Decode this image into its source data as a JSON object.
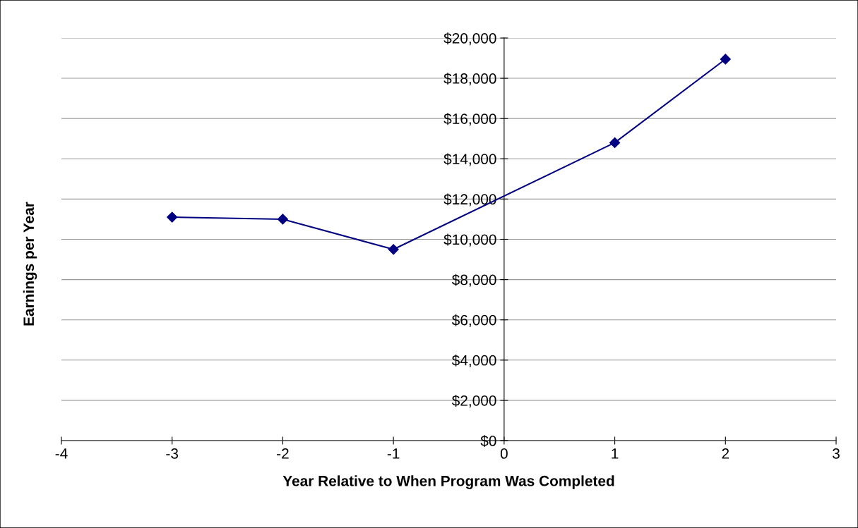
{
  "chart_data": {
    "type": "line",
    "xlabel": "Year Relative to When Program Was Completed",
    "ylabel": "Earnings per Year",
    "x": [
      -3,
      -2,
      -1,
      1,
      2
    ],
    "series": [
      {
        "color": "#000080",
        "values": [
          11100,
          11000,
          9500,
          14800,
          18950
        ]
      }
    ],
    "xlim": [
      -4,
      3
    ],
    "xticks": [
      -4,
      -3,
      -2,
      -1,
      0,
      1,
      2,
      3
    ],
    "ylim": [
      0,
      20000
    ],
    "yticks": [
      {
        "value": 0,
        "label": "$0"
      },
      {
        "value": 2000,
        "label": "$2,000"
      },
      {
        "value": 4000,
        "label": "$4,000"
      },
      {
        "value": 6000,
        "label": "$6,000"
      },
      {
        "value": 8000,
        "label": "$8,000"
      },
      {
        "value": 10000,
        "label": "$10,000"
      },
      {
        "value": 12000,
        "label": "$12,000"
      },
      {
        "value": 14000,
        "label": "$14,000"
      },
      {
        "value": 16000,
        "label": "$16,000"
      },
      {
        "value": 18000,
        "label": "$18,000"
      },
      {
        "value": 20000,
        "label": "$20,000"
      }
    ],
    "grid": "y",
    "marker": "diamond",
    "line_style": "solid",
    "legend": false
  }
}
